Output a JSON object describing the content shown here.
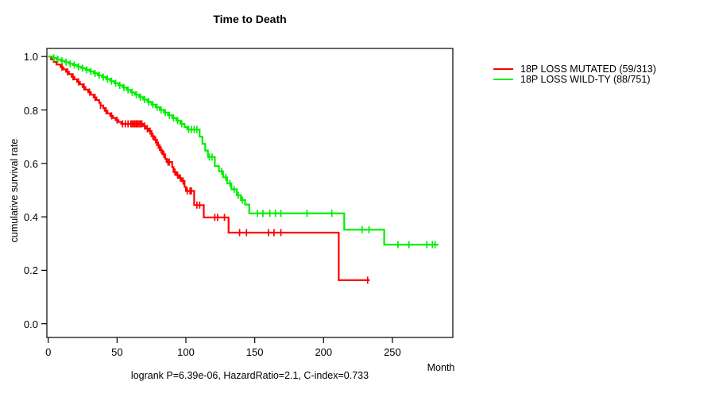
{
  "title": "Time to Death",
  "annotation": "logrank P=6.39e-06, HazardRatio=2.1, C-index=0.733",
  "axes": {
    "xlabel": "Month",
    "ylabel": "cumulative survival rate",
    "x_ticks": [
      0,
      50,
      100,
      150,
      200,
      250
    ],
    "y_tick_labels": [
      "1.0",
      "0.8",
      "0.6",
      "0.4",
      "0.2",
      "0.0"
    ]
  },
  "colors": {
    "mutated": "#ff0000",
    "wildtype": "#00ee00",
    "axis": "#000000"
  },
  "chart_data": {
    "type": "line",
    "subtype": "kaplan-meier-step-curves",
    "title": "Time to Death",
    "xlabel": "Month",
    "ylabel": "cumulative survival rate",
    "xlim": [
      0,
      294
    ],
    "ylim": [
      0,
      1.04
    ],
    "grid": false,
    "legend_position": "right-outside",
    "footer": "logrank P=6.39e-06, HazardRatio=2.1, C-index=0.733",
    "series": [
      {
        "name": "18P LOSS MUTATED (59/313)",
        "color": "#ff0000",
        "steps": [
          [
            0,
            1.0
          ],
          [
            2,
            0.99
          ],
          [
            4,
            0.98
          ],
          [
            6,
            0.97
          ],
          [
            9,
            0.96
          ],
          [
            11,
            0.952
          ],
          [
            13,
            0.943
          ],
          [
            15,
            0.934
          ],
          [
            17,
            0.924
          ],
          [
            19,
            0.915
          ],
          [
            21,
            0.905
          ],
          [
            23,
            0.896
          ],
          [
            25,
            0.886
          ],
          [
            27,
            0.876
          ],
          [
            29,
            0.867
          ],
          [
            31,
            0.857
          ],
          [
            33,
            0.847
          ],
          [
            35,
            0.837
          ],
          [
            37,
            0.827
          ],
          [
            38,
            0.817
          ],
          [
            40,
            0.807
          ],
          [
            41,
            0.797
          ],
          [
            43,
            0.787
          ],
          [
            45,
            0.778
          ],
          [
            47,
            0.77
          ],
          [
            49,
            0.762
          ],
          [
            51,
            0.755
          ],
          [
            53,
            0.748
          ],
          [
            69,
            0.74
          ],
          [
            71,
            0.73
          ],
          [
            73,
            0.721
          ],
          [
            75,
            0.702
          ],
          [
            77,
            0.688
          ],
          [
            79,
            0.668
          ],
          [
            81,
            0.65
          ],
          [
            83,
            0.634
          ],
          [
            85,
            0.617
          ],
          [
            86,
            0.605
          ],
          [
            90,
            0.586
          ],
          [
            91,
            0.568
          ],
          [
            93,
            0.556
          ],
          [
            95,
            0.545
          ],
          [
            97,
            0.534
          ],
          [
            99,
            0.512
          ],
          [
            100,
            0.497
          ],
          [
            106,
            0.444
          ],
          [
            113,
            0.398
          ],
          [
            131,
            0.341
          ],
          [
            211,
            0.163
          ]
        ],
        "end_month": 233.5,
        "censor_months": [
          10,
          14,
          18,
          22,
          26,
          30,
          34,
          38,
          42,
          46,
          50,
          54,
          56,
          58,
          60,
          61,
          62,
          63,
          64,
          65,
          66,
          67,
          68,
          70,
          72,
          74,
          76,
          78,
          80,
          82,
          84,
          87,
          88,
          92,
          94,
          96,
          98,
          101,
          103,
          104,
          108,
          110,
          121,
          123,
          128,
          139,
          144,
          160,
          164,
          169,
          232
        ]
      },
      {
        "name": "18P LOSS WILD-TY (88/751)",
        "color": "#00ee00",
        "steps": [
          [
            0,
            1.0
          ],
          [
            3,
            0.995
          ],
          [
            6,
            0.989
          ],
          [
            9,
            0.984
          ],
          [
            12,
            0.979
          ],
          [
            15,
            0.973
          ],
          [
            18,
            0.968
          ],
          [
            21,
            0.962
          ],
          [
            24,
            0.956
          ],
          [
            27,
            0.95
          ],
          [
            30,
            0.944
          ],
          [
            33,
            0.937
          ],
          [
            36,
            0.93
          ],
          [
            39,
            0.923
          ],
          [
            42,
            0.916
          ],
          [
            45,
            0.908
          ],
          [
            48,
            0.9
          ],
          [
            51,
            0.892
          ],
          [
            54,
            0.884
          ],
          [
            57,
            0.875
          ],
          [
            60,
            0.866
          ],
          [
            63,
            0.857
          ],
          [
            66,
            0.848
          ],
          [
            69,
            0.839
          ],
          [
            72,
            0.83
          ],
          [
            75,
            0.82
          ],
          [
            78,
            0.81
          ],
          [
            81,
            0.8
          ],
          [
            84,
            0.79
          ],
          [
            87,
            0.78
          ],
          [
            90,
            0.77
          ],
          [
            93,
            0.76
          ],
          [
            96,
            0.748
          ],
          [
            99,
            0.736
          ],
          [
            101,
            0.727
          ],
          [
            110,
            0.7
          ],
          [
            112,
            0.673
          ],
          [
            114,
            0.648
          ],
          [
            116,
            0.624
          ],
          [
            121,
            0.59
          ],
          [
            124,
            0.57
          ],
          [
            127,
            0.548
          ],
          [
            130,
            0.525
          ],
          [
            133,
            0.503
          ],
          [
            137,
            0.481
          ],
          [
            140,
            0.463
          ],
          [
            143,
            0.446
          ],
          [
            146,
            0.413
          ],
          [
            215,
            0.352
          ],
          [
            244,
            0.296
          ]
        ],
        "end_month": 283.5,
        "censor_months": [
          4,
          7,
          10,
          13,
          16,
          19,
          22,
          25,
          28,
          31,
          34,
          37,
          40,
          43,
          46,
          49,
          52,
          55,
          58,
          61,
          64,
          67,
          70,
          73,
          76,
          79,
          82,
          85,
          88,
          91,
          94,
          97,
          102,
          104,
          106,
          108,
          117,
          119,
          126,
          129,
          132,
          135,
          138,
          141,
          152,
          156,
          161,
          165,
          169,
          188,
          206,
          228,
          233,
          254,
          262,
          275,
          279,
          281
        ]
      }
    ]
  }
}
